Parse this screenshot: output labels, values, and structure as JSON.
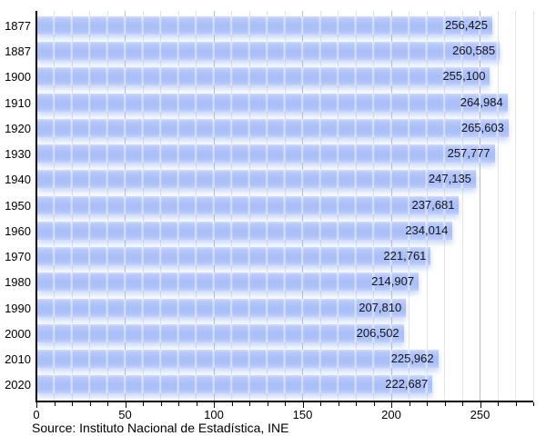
{
  "chart_data": {
    "type": "bar",
    "orientation": "horizontal",
    "title": "",
    "xlabel": "",
    "ylabel": "",
    "categories": [
      "1877",
      "1887",
      "1900",
      "1910",
      "1920",
      "1930",
      "1940",
      "1950",
      "1960",
      "1970",
      "1980",
      "1990",
      "2000",
      "2010",
      "2020"
    ],
    "values": [
      256425,
      260585,
      255100,
      264984,
      265603,
      257777,
      247135,
      237681,
      234014,
      221761,
      214907,
      207810,
      206502,
      225962,
      222687
    ],
    "value_labels": [
      "256,425",
      "260,585",
      "255,100",
      "264,984",
      "265,603",
      "257,777",
      "247,135",
      "237,681",
      "234,014",
      "221,761",
      "214,907",
      "207,810",
      "206,502",
      "225,962",
      "222,687"
    ],
    "x_axis": {
      "tick_labels": [
        "0",
        "50",
        "100",
        "150",
        "200",
        "250"
      ],
      "tick_values": [
        0,
        50,
        100,
        150,
        200,
        250
      ],
      "minor_tick_step": 10,
      "range": [
        0,
        280
      ],
      "unit": "thousands"
    },
    "grid": "vertical-minor-and-major",
    "legend": "none",
    "bar_color": "#aec1f8",
    "source_note": "Source: Instituto Nacional de Estadística, INE"
  }
}
